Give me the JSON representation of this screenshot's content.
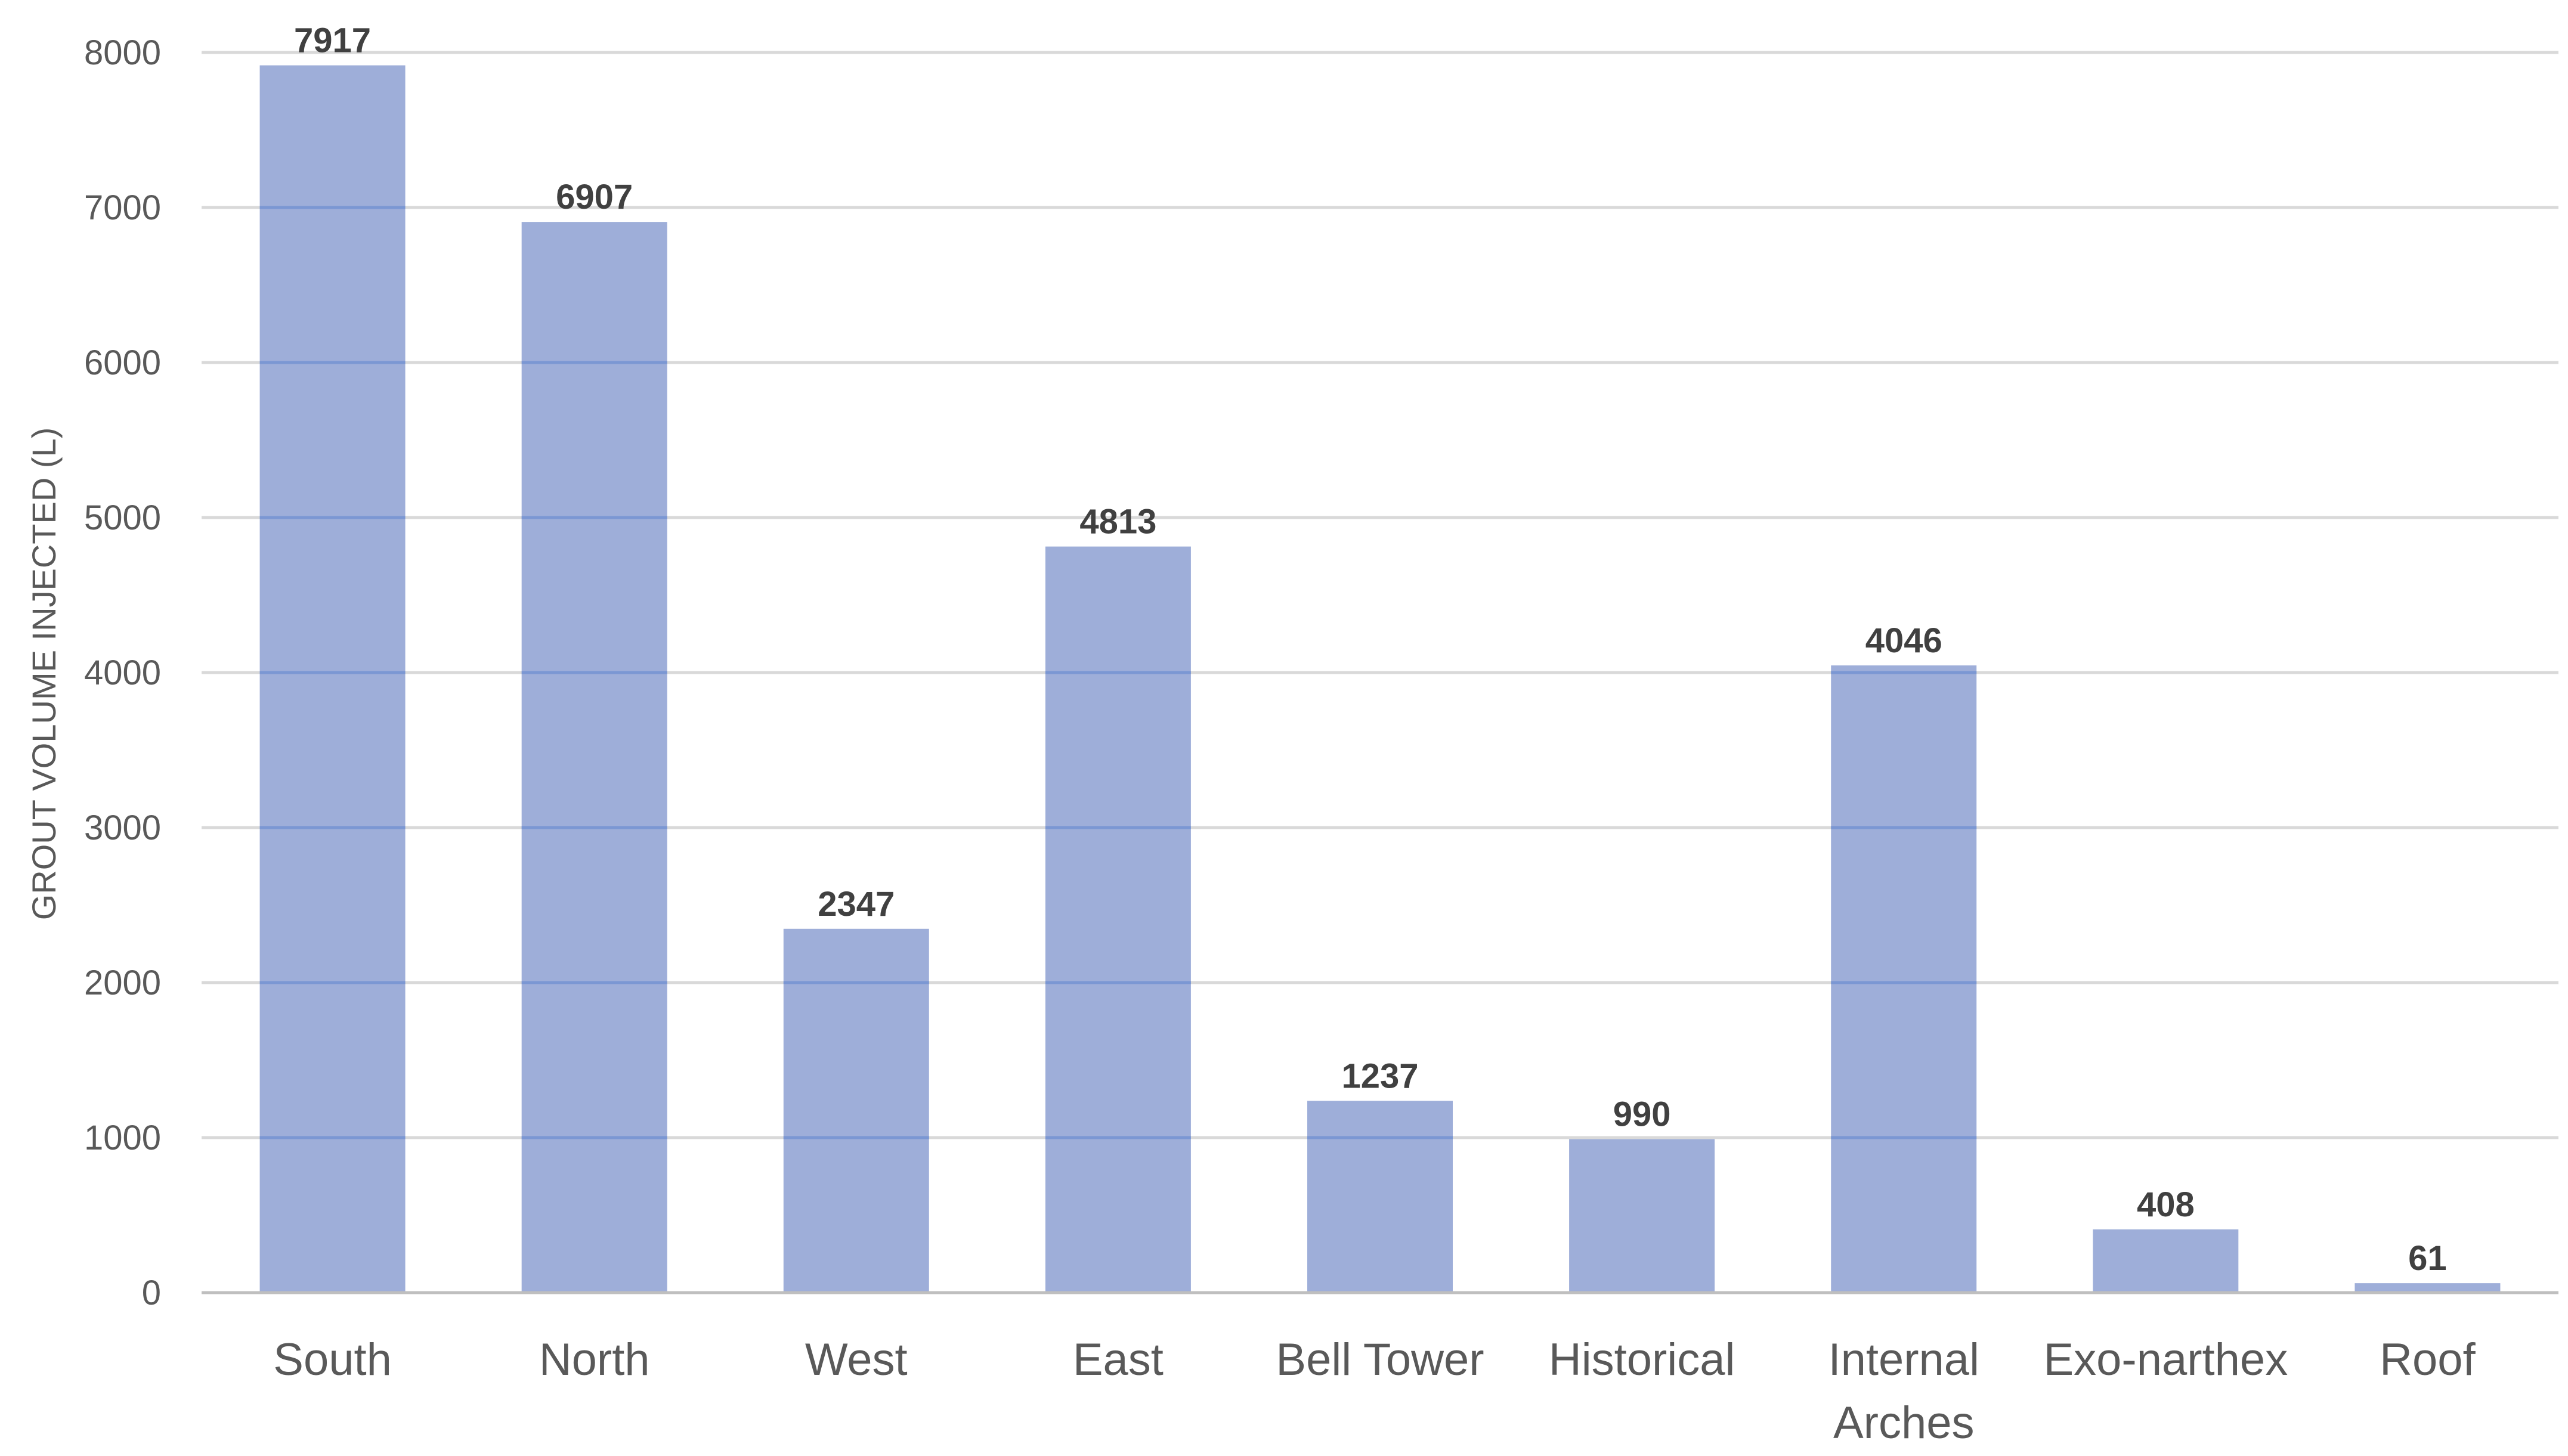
{
  "chart_data": {
    "type": "bar",
    "categories": [
      [
        "South"
      ],
      [
        "North"
      ],
      [
        "West"
      ],
      [
        "East"
      ],
      [
        "Bell Tower"
      ],
      [
        "Historical"
      ],
      [
        "Internal",
        "Arches"
      ],
      [
        "Exo-narthex"
      ],
      [
        "Roof"
      ]
    ],
    "values": [
      7917,
      6907,
      2347,
      4813,
      1237,
      990,
      4046,
      408,
      61
    ],
    "ylabel": "GROUT VOLUME INJECTED (L)",
    "xlabel": "",
    "ylim": [
      0,
      8000
    ],
    "yticks": [
      0,
      1000,
      2000,
      3000,
      4000,
      5000,
      6000,
      7000,
      8000
    ],
    "grid": true,
    "data_labels": true,
    "colors": {
      "bar": "#9eaed9",
      "gridline": "#d9d9d9",
      "gridline_over_bar": "#6f8fd0",
      "axis": "#bfbfbf",
      "tick_text": "#595959",
      "data_label_text": "#404040"
    }
  }
}
